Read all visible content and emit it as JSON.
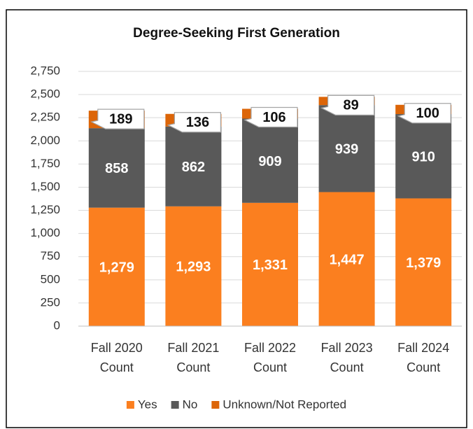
{
  "chart_data": {
    "type": "stacked_bar",
    "title": "Degree-Seeking First Generation",
    "categories": [
      "Fall 2020 Count",
      "Fall 2021 Count",
      "Fall 2022 Count",
      "Fall 2023 Count",
      "Fall 2024 Count"
    ],
    "series": [
      {
        "name": "Yes",
        "color": "#fb7f1f",
        "values": [
          1279,
          1293,
          1331,
          1447,
          1379
        ],
        "value_labels": [
          "1,279",
          "1,293",
          "1,331",
          "1,447",
          "1,379"
        ]
      },
      {
        "name": "No",
        "color": "#595959",
        "values": [
          858,
          862,
          909,
          939,
          910
        ]
      },
      {
        "name": "Unknown/Not Reported",
        "color": "#dc6508",
        "values": [
          189,
          136,
          106,
          89,
          100
        ]
      }
    ],
    "ylim": [
      0,
      2750
    ],
    "yticks": [
      0,
      250,
      500,
      750,
      {
        "value": 1000,
        "label": "1,000"
      },
      {
        "value": 1250,
        "label": "1,250"
      },
      {
        "value": 1500,
        "label": "1,500"
      },
      {
        "value": 1750,
        "label": "1,750"
      },
      {
        "value": 2000,
        "label": "2,000"
      },
      {
        "value": 2250,
        "label": "2,250"
      },
      {
        "value": 2500,
        "label": "2,500"
      },
      {
        "value": 2750,
        "label": "2,750"
      }
    ],
    "grid": true,
    "legend": "bottom"
  }
}
